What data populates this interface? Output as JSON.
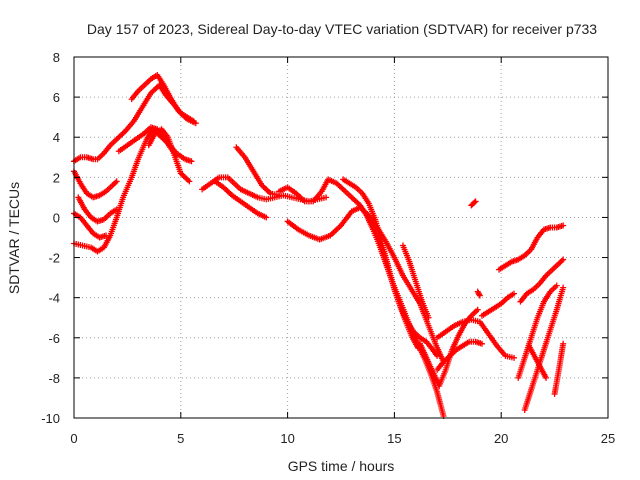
{
  "chart_data": {
    "type": "scatter",
    "title": "Day 157 of 2023, Sidereal Day-to-day VTEC variation (SDTVAR) for receiver p733",
    "xlabel": "GPS time / hours",
    "ylabel": "SDTVAR / TECUs",
    "xlim": [
      0,
      25
    ],
    "ylim": [
      -10,
      8
    ],
    "xticks": [
      0,
      5,
      10,
      15,
      20,
      25
    ],
    "yticks": [
      -10,
      -8,
      -6,
      -4,
      -2,
      0,
      2,
      4,
      6,
      8
    ],
    "grid": true,
    "marker": "+",
    "series_color": "#ff0000",
    "tracks": [
      {
        "x": [
          0,
          0.3,
          0.6,
          0.9,
          1.1,
          1.4,
          1.7,
          2.0,
          2.4,
          2.8,
          3.2,
          3.6,
          4.0,
          4.3,
          4.7,
          5.0,
          5.3,
          5.6
        ],
        "y": [
          2.8,
          3.0,
          3.0,
          2.9,
          2.9,
          3.2,
          3.6,
          3.9,
          4.3,
          4.8,
          5.5,
          6.2,
          6.6,
          6.1,
          5.6,
          5.2,
          5.0,
          4.8
        ]
      },
      {
        "x": [
          0,
          0.3,
          0.6,
          0.9,
          1.2,
          1.5,
          1.8,
          2.0
        ],
        "y": [
          2.3,
          1.7,
          1.2,
          1.0,
          1.1,
          1.3,
          1.6,
          1.8
        ]
      },
      {
        "x": [
          0.2,
          0.5,
          0.8,
          1.1,
          1.4,
          1.7,
          2.0
        ],
        "y": [
          1.0,
          0.4,
          0,
          -0.2,
          -0.1,
          0.2,
          0.4
        ]
      },
      {
        "x": [
          0,
          0.4,
          0.8,
          1.1,
          1.4,
          1.7,
          2.0,
          2.3,
          2.7,
          3.0,
          3.4,
          3.7,
          4.0,
          4.4,
          4.8,
          5.2,
          5.5
        ],
        "y": [
          -1.3,
          -1.4,
          -1.5,
          -1.7,
          -1.5,
          -0.9,
          0,
          1.0,
          2.0,
          2.9,
          3.9,
          4.4,
          4.1,
          3.7,
          3.2,
          2.9,
          2.8
        ]
      },
      {
        "x": [
          0,
          0.3,
          0.6,
          0.9,
          1.2,
          1.5
        ],
        "y": [
          0.2,
          0,
          -0.4,
          -0.8,
          -1.0,
          -0.9
        ]
      },
      {
        "x": [
          2.1,
          2.5,
          2.9,
          3.3,
          3.6,
          3.9,
          4.2,
          4.5,
          4.8
        ],
        "y": [
          3.3,
          3.6,
          3.9,
          4.2,
          4.5,
          4.4,
          4.0,
          3.5,
          3.1
        ]
      },
      {
        "x": [
          2.7,
          3.0,
          3.3,
          3.6,
          3.9,
          4.2,
          4.5,
          4.9,
          5.3,
          5.7
        ],
        "y": [
          5.9,
          6.3,
          6.6,
          6.9,
          7.1,
          6.6,
          6.0,
          5.3,
          4.9,
          4.7
        ]
      },
      {
        "x": [
          3.5,
          3.8,
          4.1,
          4.4,
          4.7,
          5.0,
          5.4
        ],
        "y": [
          3.6,
          4.2,
          4.4,
          4.0,
          3.1,
          2.2,
          1.8
        ]
      },
      {
        "x": [
          6.0,
          6.4,
          6.8,
          7.2,
          7.5,
          7.8,
          8.2,
          8.6,
          9.0,
          9.4,
          9.8,
          10.2,
          10.6,
          11.0,
          11.4,
          11.8
        ],
        "y": [
          1.4,
          1.7,
          2.0,
          2.0,
          1.7,
          1.4,
          1.2,
          1.0,
          0.9,
          1.0,
          1.1,
          1.0,
          0.9,
          0.8,
          0.9,
          1.0
        ]
      },
      {
        "x": [
          7.6,
          8.0,
          8.4,
          8.8,
          9.2,
          9.6
        ],
        "y": [
          3.5,
          3.0,
          2.3,
          1.6,
          1.2,
          1.1
        ]
      },
      {
        "x": [
          6.6,
          7.0,
          7.4,
          7.8,
          8.2,
          8.6,
          9.0
        ],
        "y": [
          1.8,
          1.5,
          1.1,
          0.8,
          0.5,
          0.2,
          0
        ]
      },
      {
        "x": [
          9.6,
          10.0,
          10.4,
          10.8,
          11.2,
          11.6,
          11.9,
          12.3,
          12.7,
          13.0,
          13.4,
          13.7,
          14.0,
          14.3,
          14.6,
          14.9,
          15.2,
          15.5,
          15.8,
          16.1,
          16.4,
          16.7,
          17.0,
          17.3
        ],
        "y": [
          1.3,
          1.5,
          1.2,
          0.8,
          0.8,
          1.3,
          1.9,
          1.7,
          1.3,
          1.0,
          0.6,
          0.1,
          -0.6,
          -1.4,
          -2.3,
          -3.2,
          -4.0,
          -4.8,
          -5.6,
          -6.3,
          -7.0,
          -7.8,
          -8.7,
          -9.9
        ]
      },
      {
        "x": [
          10.0,
          10.5,
          11.0,
          11.5,
          12.0,
          12.5,
          13.0,
          13.4,
          13.8,
          14.2,
          14.6,
          15.0,
          15.4,
          15.8,
          16.2,
          16.6,
          17.0,
          17.3
        ],
        "y": [
          -0.2,
          -0.6,
          -0.9,
          -1.1,
          -0.9,
          -0.4,
          0.3,
          0.5,
          0.1,
          -0.5,
          -1.2,
          -2.0,
          -2.9,
          -3.6,
          -4.3,
          -5.4,
          -6.5,
          -7.2
        ]
      },
      {
        "x": [
          12.6,
          12.9,
          13.2,
          13.5,
          13.8,
          14.1,
          14.4,
          14.7,
          15.0,
          15.3,
          15.6,
          15.9,
          16.2,
          16.5,
          16.8,
          17.0
        ],
        "y": [
          1.9,
          1.7,
          1.5,
          1.2,
          0.7,
          -0.1,
          -1.2,
          -2.4,
          -3.6,
          -4.5,
          -5.2,
          -5.7,
          -6.0,
          -6.2,
          -6.6,
          -6.9
        ]
      },
      {
        "x": [
          14.0,
          14.3,
          14.6,
          14.9,
          15.2,
          15.5,
          15.8,
          16.1
        ],
        "y": [
          -0.3,
          -1.2,
          -2.2,
          -3.2,
          -4.2,
          -5.1,
          -5.9,
          -6.5
        ]
      },
      {
        "x": [
          15.4,
          15.7,
          16.0,
          16.3,
          16.6
        ],
        "y": [
          -1.4,
          -2.2,
          -3.2,
          -4.2,
          -5.0
        ]
      },
      {
        "x": [
          16.2,
          16.5,
          16.8,
          17.1,
          17.4,
          17.7,
          18.0,
          18.3,
          18.6,
          18.9
        ],
        "y": [
          -6.3,
          -7.0,
          -7.7,
          -8.4,
          -7.6,
          -6.6,
          -5.9,
          -5.3,
          -4.9,
          -4.6
        ]
      },
      {
        "x": [
          17.0,
          17.4,
          17.8,
          18.2,
          18.6,
          19.0,
          19.4,
          19.8,
          20.2,
          20.6
        ],
        "y": [
          -6.0,
          -5.7,
          -5.4,
          -5.2,
          -5.1,
          -5.2,
          -5.8,
          -6.4,
          -6.9,
          -7.0
        ]
      },
      {
        "x": [
          17.0,
          17.3,
          17.6,
          17.9,
          18.2,
          18.5,
          18.8,
          19.1
        ],
        "y": [
          -7.6,
          -7.2,
          -6.9,
          -6.6,
          -6.4,
          -6.2,
          -6.2,
          -6.3
        ]
      },
      {
        "x": [
          18.6,
          18.7,
          18.8
        ],
        "y": [
          0.6,
          0.7,
          0.8
        ]
      },
      {
        "x": [
          18.9,
          19.0
        ],
        "y": [
          -3.7,
          -3.9
        ]
      },
      {
        "x": [
          19.1,
          19.4,
          19.7,
          20.0,
          20.3,
          20.6
        ],
        "y": [
          -4.9,
          -4.7,
          -4.5,
          -4.3,
          -4.0,
          -3.8
        ]
      },
      {
        "x": [
          19.9,
          20.2,
          20.5,
          20.8,
          21.1,
          21.4,
          21.7,
          22.0,
          22.3,
          22.6,
          22.9
        ],
        "y": [
          -2.6,
          -2.4,
          -2.2,
          -2.1,
          -1.9,
          -1.6,
          -1.0,
          -0.6,
          -0.5,
          -0.5,
          -0.4
        ]
      },
      {
        "x": [
          20.9,
          21.2,
          21.5,
          21.8,
          22.1,
          22.4,
          22.7,
          22.9
        ],
        "y": [
          -4.2,
          -3.8,
          -3.6,
          -3.3,
          -2.9,
          -2.6,
          -2.3,
          -2.1
        ]
      },
      {
        "x": [
          20.8,
          21.1,
          21.4,
          21.7,
          22.0,
          22.3,
          22.6
        ],
        "y": [
          -8.0,
          -7.0,
          -6.0,
          -5.0,
          -4.2,
          -3.7,
          -3.4
        ]
      },
      {
        "x": [
          21.1,
          21.4,
          21.7,
          22.0,
          22.3,
          22.6,
          22.9
        ],
        "y": [
          -9.6,
          -8.6,
          -7.6,
          -6.6,
          -5.6,
          -4.6,
          -3.5
        ]
      },
      {
        "x": [
          21.3,
          21.6,
          21.9,
          22.1
        ],
        "y": [
          -6.4,
          -7.0,
          -7.6,
          -8.0
        ]
      },
      {
        "x": [
          22.5,
          22.7,
          22.9
        ],
        "y": [
          -8.8,
          -7.6,
          -6.3
        ]
      }
    ]
  }
}
